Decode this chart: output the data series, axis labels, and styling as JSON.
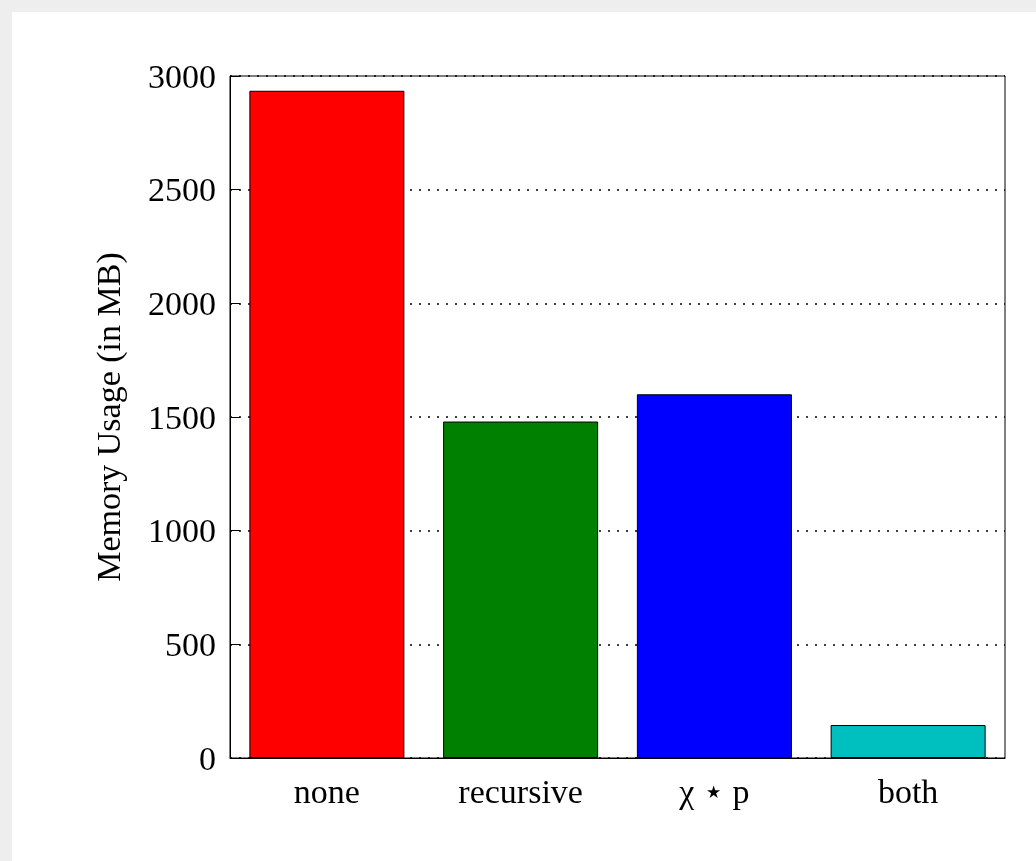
{
  "chart_data": {
    "type": "bar",
    "ylabel": "Memory Usage (in MB)",
    "categories": [
      "none",
      "recursive",
      "χ ⋆ p",
      "both"
    ],
    "values": [
      2935,
      1480,
      1600,
      145
    ],
    "colors": [
      "#ff0000",
      "#008000",
      "#0000ff",
      "#00bfbf"
    ],
    "ylim": [
      0,
      3000
    ],
    "yticks": [
      0,
      500,
      1000,
      1500,
      2000,
      2500,
      3000
    ],
    "grid": "y"
  }
}
